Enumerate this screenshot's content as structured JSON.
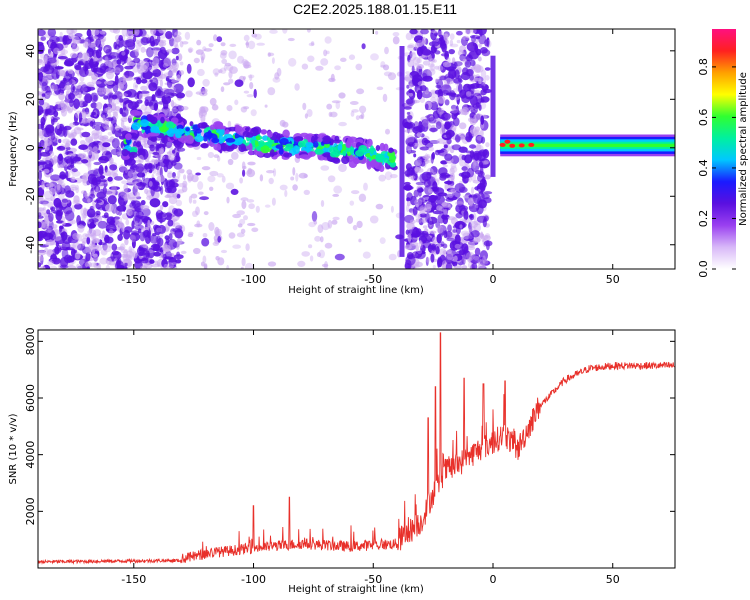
{
  "title": "C2E2.2025.188.01.15.E11",
  "colors": {
    "snr_line": "#e8302a",
    "scatter_dark": "#5a10e0",
    "scatter_light": "#c9a6f0",
    "colormap": [
      "#ffffff",
      "#d8b8f8",
      "#9a40f0",
      "#5a10e0",
      "#1a1aff",
      "#00c8ff",
      "#00f0a0",
      "#30ff30",
      "#ffff00",
      "#ffa000",
      "#ff2020",
      "#ff1080"
    ]
  },
  "chart_data": [
    {
      "type": "heatmap",
      "title": "C2E2.2025.188.01.15.E11",
      "xlabel": "Height of straight line (km)",
      "ylabel": "Frequency (Hz)",
      "xlim": [
        -190,
        76
      ],
      "ylim": [
        -50,
        49
      ],
      "x_ticks": [
        -150,
        -100,
        -50,
        0,
        50
      ],
      "y_ticks": [
        -40,
        -20,
        0,
        20,
        40
      ],
      "colorbar": {
        "label": "Normalized spectral amplitude",
        "range": [
          0,
          0.95
        ],
        "ticks": [
          0.0,
          0.2,
          0.4,
          0.6,
          0.8
        ]
      },
      "signal_track": [
        {
          "x": -150,
          "freq": 10
        },
        {
          "x": -130,
          "freq": 7
        },
        {
          "x": -110,
          "freq": 4
        },
        {
          "x": -90,
          "freq": 1
        },
        {
          "x": -70,
          "freq": 0
        },
        {
          "x": -55,
          "freq": -2
        },
        {
          "x": -40,
          "freq": -5
        },
        {
          "x": -5,
          "freq": 10
        },
        {
          "x": 0,
          "freq": -3
        },
        {
          "x": 2,
          "freq": 3
        },
        {
          "x": 10,
          "freq": 1
        },
        {
          "x": 30,
          "freq": 1
        },
        {
          "x": 76,
          "freq": 1
        }
      ]
    },
    {
      "type": "line",
      "xlabel": "Height of straight line (km)",
      "ylabel": "SNR (10 * v/v)",
      "xlim": [
        -190,
        76
      ],
      "ylim": [
        0,
        8400
      ],
      "x_ticks": [
        -150,
        -100,
        -50,
        0,
        50
      ],
      "y_ticks": [
        2000,
        4000,
        6000,
        8000
      ],
      "series_shape": [
        {
          "x": -190,
          "y": 200
        },
        {
          "x": -130,
          "y": 250
        },
        {
          "x": -120,
          "y": 450
        },
        {
          "x": -100,
          "y": 650
        },
        {
          "x": -80,
          "y": 800
        },
        {
          "x": -60,
          "y": 700
        },
        {
          "x": -40,
          "y": 800
        },
        {
          "x": -30,
          "y": 1500
        },
        {
          "x": -25,
          "y": 2500
        },
        {
          "x": -20,
          "y": 3300
        },
        {
          "x": -15,
          "y": 3500
        },
        {
          "x": -10,
          "y": 3800
        },
        {
          "x": -5,
          "y": 4100
        },
        {
          "x": 0,
          "y": 4300
        },
        {
          "x": 5,
          "y": 4600
        },
        {
          "x": 10,
          "y": 4000
        },
        {
          "x": 20,
          "y": 5700
        },
        {
          "x": 30,
          "y": 6600
        },
        {
          "x": 40,
          "y": 7000
        },
        {
          "x": 50,
          "y": 7100
        },
        {
          "x": 60,
          "y": 7100
        },
        {
          "x": 76,
          "y": 7100
        }
      ],
      "spikes": [
        {
          "x": -22,
          "y": 8300
        },
        {
          "x": -24,
          "y": 6400
        },
        {
          "x": -27,
          "y": 5300
        },
        {
          "x": -12,
          "y": 6700
        },
        {
          "x": -4,
          "y": 6500
        },
        {
          "x": 5,
          "y": 6600
        },
        {
          "x": -85,
          "y": 2500
        },
        {
          "x": -100,
          "y": 2200
        }
      ]
    }
  ]
}
